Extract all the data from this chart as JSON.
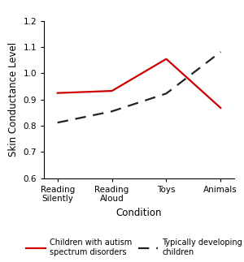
{
  "x_labels": [
    "Reading\nSilently",
    "Reading\nAloud",
    "Toys",
    "Animals"
  ],
  "asd_values": [
    0.925,
    0.933,
    1.055,
    0.868
  ],
  "td_values": [
    0.812,
    0.855,
    0.923,
    1.082
  ],
  "asd_color": "#cc0000",
  "td_color": "#222222",
  "ylabel": "Skin Conductance Level",
  "xlabel": "Condition",
  "ylim": [
    0.6,
    1.2
  ],
  "yticks": [
    0.6,
    0.7,
    0.8,
    0.9,
    1.0,
    1.1,
    1.2
  ],
  "asd_label": "Children with autism\nspectrum disorders",
  "td_label": "Typically developing\nchildren",
  "background_color": "#ffffff"
}
